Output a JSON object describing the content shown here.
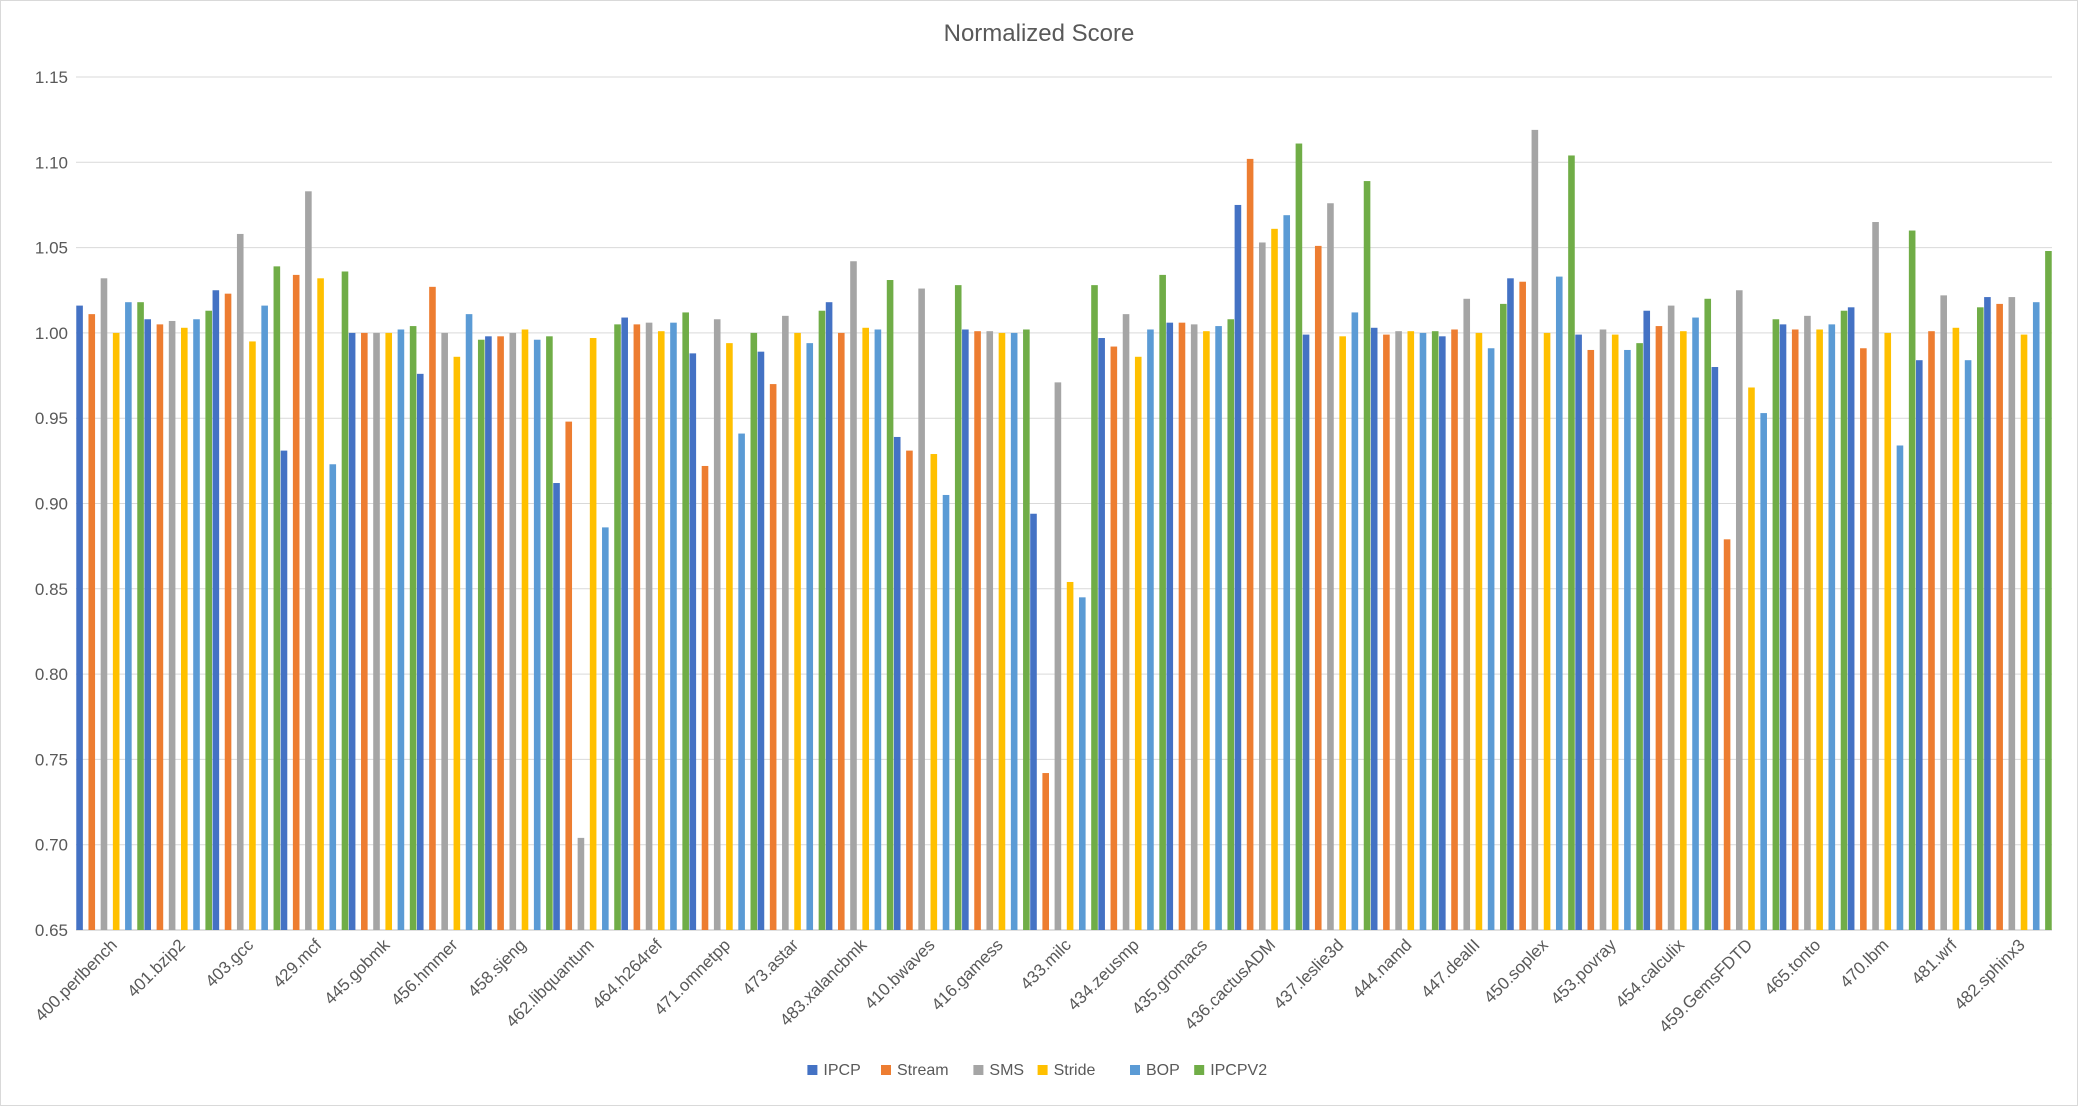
{
  "chart_data": {
    "type": "bar",
    "title": "Normalized Score",
    "xlabel": "",
    "ylabel": "",
    "ylim": [
      0.65,
      1.15
    ],
    "yticks": [
      "0.65",
      "0.70",
      "0.75",
      "0.80",
      "0.85",
      "0.90",
      "0.95",
      "1.00",
      "1.05",
      "1.10",
      "1.15"
    ],
    "grid": true,
    "legend_position": "bottom",
    "categories": [
      "400.perlbench",
      "401.bzip2",
      "403.gcc",
      "429.mcf",
      "445.gobmk",
      "456.hmmer",
      "458.sjeng",
      "462.libquantum",
      "464.h264ref",
      "471.omnetpp",
      "473.astar",
      "483.xalancbmk",
      "410.bwaves",
      "416.gamess",
      "433.milc",
      "434.zeusmp",
      "435.gromacs",
      "436.cactusADM",
      "437.leslie3d",
      "444.namd",
      "447.dealII",
      "450.soplex",
      "453.povray",
      "454.calculix",
      "459.GemsFDTD",
      "465.tonto",
      "470.lbm",
      "481.wrf",
      "482.sphinx3"
    ],
    "series": [
      {
        "name": "IPCP",
        "color": "#4472c4",
        "values": [
          1.016,
          1.008,
          1.025,
          0.931,
          1.0,
          0.976,
          0.998,
          0.912,
          1.009,
          0.988,
          0.989,
          1.018,
          0.939,
          1.002,
          0.894,
          0.997,
          1.006,
          1.075,
          0.999,
          1.003,
          0.998,
          1.032,
          0.999,
          1.013,
          0.98,
          1.005,
          1.015,
          0.984,
          1.021
        ]
      },
      {
        "name": "Stream",
        "color": "#ed7d31",
        "values": [
          1.011,
          1.005,
          1.023,
          1.034,
          1.0,
          1.027,
          0.998,
          0.948,
          1.005,
          0.922,
          0.97,
          1.0,
          0.931,
          1.001,
          0.742,
          0.992,
          1.006,
          1.102,
          1.051,
          0.999,
          1.002,
          1.03,
          0.99,
          1.004,
          0.879,
          1.002,
          0.991,
          1.001,
          1.017
        ]
      },
      {
        "name": "SMS",
        "color": "#a5a5a5",
        "values": [
          1.032,
          1.007,
          1.058,
          1.083,
          1.0,
          1.0,
          1.0,
          0.704,
          1.006,
          1.008,
          1.01,
          1.042,
          1.026,
          1.001,
          0.971,
          1.011,
          1.005,
          1.053,
          1.076,
          1.001,
          1.02,
          1.119,
          1.002,
          1.016,
          1.025,
          1.01,
          1.065,
          1.022,
          1.021
        ]
      },
      {
        "name": "Stride",
        "color": "#ffc000",
        "values": [
          1.0,
          1.003,
          0.995,
          1.032,
          1.0,
          0.986,
          1.002,
          0.997,
          1.001,
          0.994,
          1.0,
          1.003,
          0.929,
          1.0,
          0.854,
          0.986,
          1.001,
          1.061,
          0.998,
          1.001,
          1.0,
          1.0,
          0.999,
          1.001,
          0.968,
          1.002,
          1.0,
          1.003,
          0.999
        ]
      },
      {
        "name": "BOP",
        "color": "#5b9bd5",
        "values": [
          1.018,
          1.008,
          1.016,
          0.923,
          1.002,
          1.011,
          0.996,
          0.886,
          1.006,
          0.941,
          0.994,
          1.002,
          0.905,
          1.0,
          0.845,
          1.002,
          1.004,
          1.069,
          1.012,
          1.0,
          0.991,
          1.033,
          0.99,
          1.009,
          0.953,
          1.005,
          0.934,
          0.984,
          1.018
        ]
      },
      {
        "name": "IPCPV2",
        "color": "#70ad47",
        "values": [
          1.018,
          1.013,
          1.039,
          1.036,
          1.004,
          0.996,
          0.998,
          1.005,
          1.012,
          1.0,
          1.013,
          1.031,
          1.028,
          1.002,
          1.028,
          1.034,
          1.008,
          1.111,
          1.089,
          1.001,
          1.017,
          1.104,
          0.994,
          1.02,
          1.008,
          1.013,
          1.06,
          1.015,
          1.048
        ]
      }
    ]
  }
}
